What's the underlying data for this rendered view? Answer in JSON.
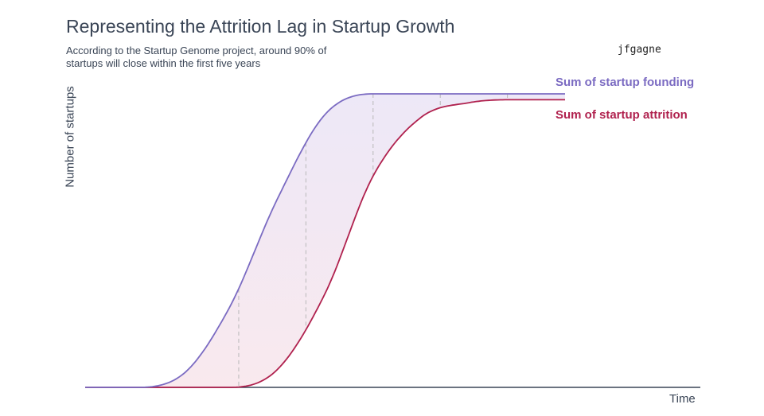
{
  "title": "Representing the Attrition Lag in Startup Growth",
  "subtitle": "According to the Startup Genome project, around 90% of startups will close within the first five years",
  "author": "jfgagne",
  "colors": {
    "founding": "#7b6bc2",
    "attrition": "#b0214e",
    "text": "#3a4556",
    "fill_top": "#ede8f7",
    "fill_bottom": "#f9e9ee",
    "guide": "#b8b8b8"
  },
  "chart_data": {
    "type": "line",
    "xlabel": "Time",
    "ylabel": "Number of startups",
    "xlim": [
      0,
      100
    ],
    "ylim": [
      0,
      100
    ],
    "grid": false,
    "legend_placement": "right",
    "fill_between": true,
    "series": [
      {
        "name": "Sum of startup founding",
        "color": "#7b6bc2",
        "x": [
          0,
          10,
          20,
          30,
          40,
          50,
          60,
          65,
          70,
          80,
          100
        ],
        "y": [
          0,
          0,
          4,
          27,
          64,
          93,
          100,
          100,
          100,
          100,
          100
        ]
      },
      {
        "name": "Sum of startup attrition",
        "color": "#b0214e",
        "x": [
          0,
          20,
          30,
          40,
          50,
          60,
          70,
          80,
          90,
          100
        ],
        "y": [
          0,
          0,
          0,
          6,
          32,
          72,
          92,
          97,
          98,
          98
        ]
      }
    ],
    "guide_lines_x": [
      32,
      46,
      60,
      74,
      88
    ]
  }
}
